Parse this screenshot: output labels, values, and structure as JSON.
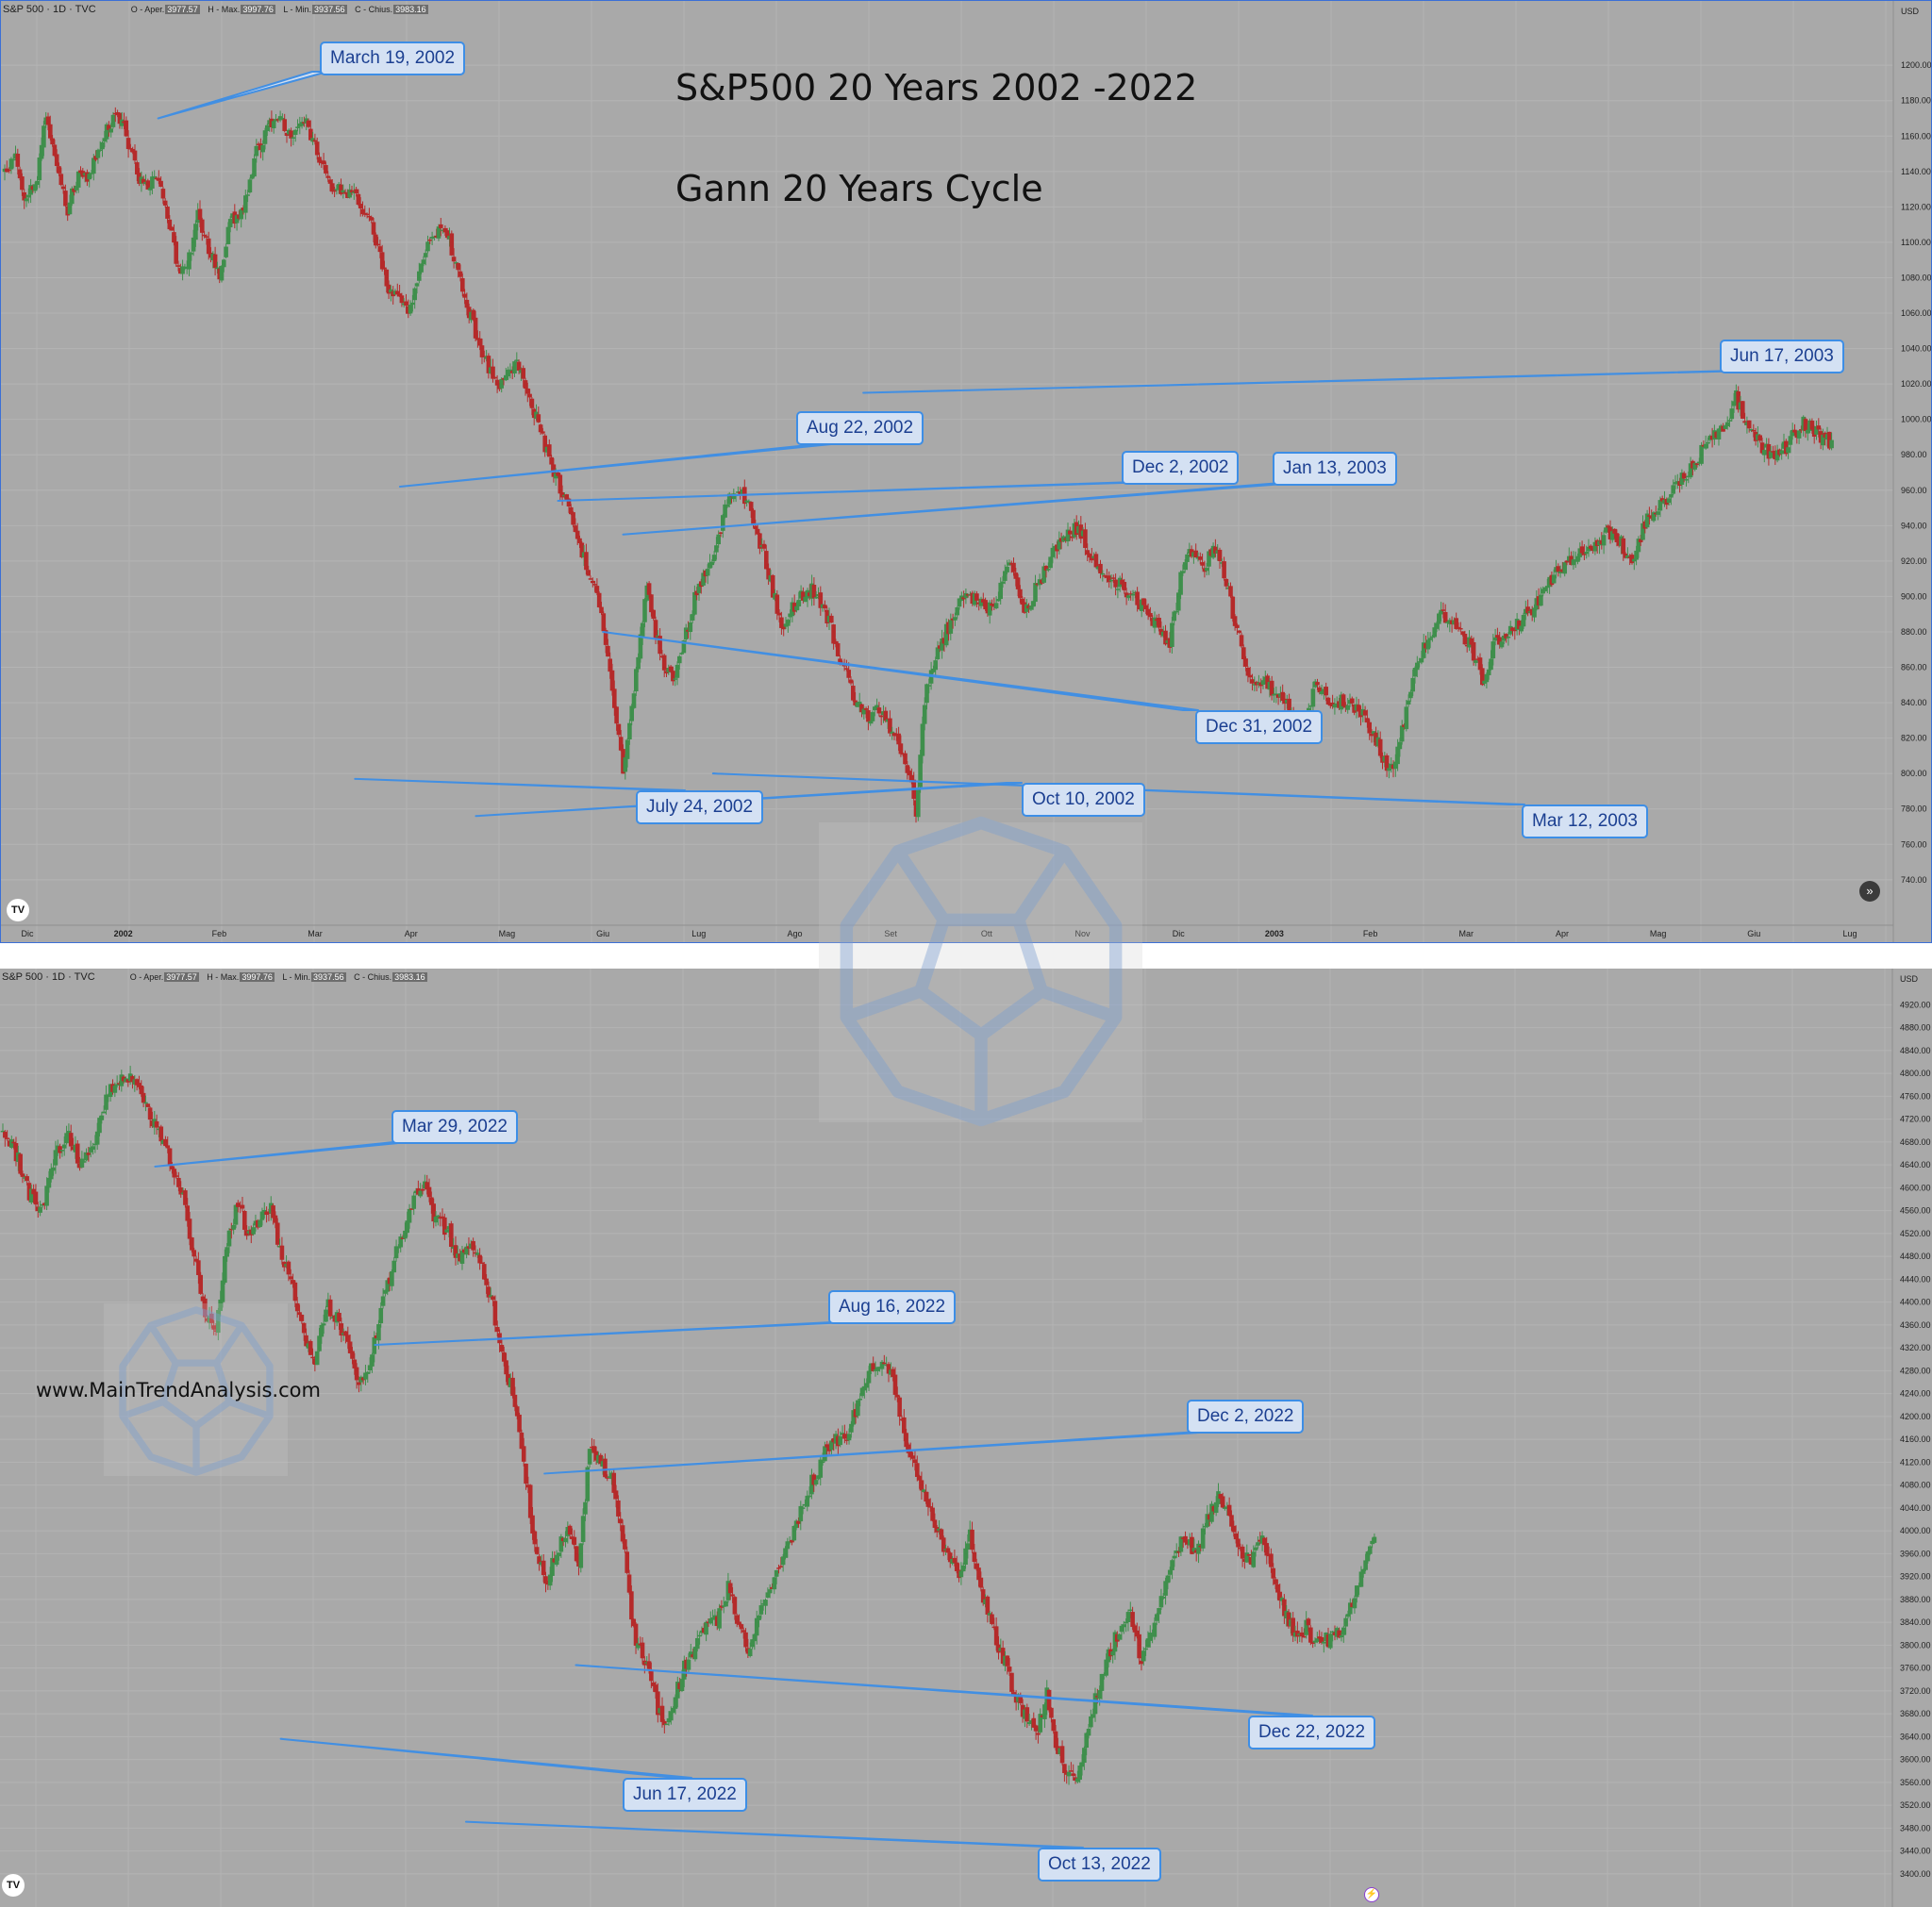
{
  "colors": {
    "up": "#3f8f4c",
    "down": "#b52a2a",
    "callout_bg": "#d4e1f3",
    "callout_border": "#3d8ee6",
    "background": "#a9a9a9"
  },
  "title": {
    "line1": "S&P500 20 Years 2002 -2022",
    "line2": "Gann 20 Years Cycle"
  },
  "website": "www.MainTrendAnalysis.com",
  "icons": {
    "logo": "tradingview-logo-icon",
    "watermark": "dodecahedron-watermark-icon",
    "scroll": "scroll-right-icon",
    "flash": "flash-icon"
  },
  "top": {
    "header": {
      "symbol": "S&P 500 · 1D · TVC",
      "o_label": "O - Aper.",
      "o": "3977.57",
      "h_label": "H - Max.",
      "h": "3997.76",
      "l_label": "L - Min.",
      "l": "3937.56",
      "c_label": "C - Chius.",
      "c": "3983.16"
    },
    "currency": "USD",
    "scroll_glyph": "»"
  },
  "bottom": {
    "header": {
      "symbol": "S&P 500 · 1D · TVC",
      "o_label": "O - Aper.",
      "o": "3977.57",
      "h_label": "H - Max.",
      "h": "3997.76",
      "l_label": "L - Min.",
      "l": "3937.56",
      "c_label": "C - Chius.",
      "c": "3983.16"
    },
    "currency": "USD",
    "flash_glyph": "⚡"
  },
  "chart_data": [
    {
      "type": "candlestick",
      "ylim": [
        725,
        1215
      ],
      "y_ticks": [
        "740.00",
        "760.00",
        "780.00",
        "800.00",
        "820.00",
        "840.00",
        "860.00",
        "880.00",
        "900.00",
        "920.00",
        "940.00",
        "960.00",
        "980.00",
        "1000.00",
        "1020.00",
        "1040.00",
        "1060.00",
        "1080.00",
        "1100.00",
        "1120.00",
        "1140.00",
        "1160.00",
        "1180.00",
        "1200.00"
      ],
      "x_tick_labels": [
        "Dic",
        "2002",
        "Feb",
        "Mar",
        "Apr",
        "Mag",
        "Giu",
        "Lug",
        "Ago",
        "Set",
        "Ott",
        "Nov",
        "Dic",
        "2003",
        "Feb",
        "Mar",
        "Apr",
        "Mag",
        "Giu",
        "Lug"
      ],
      "path": [
        [
          0,
          1140
        ],
        [
          5,
          1150
        ],
        [
          9,
          1126
        ],
        [
          15,
          1136
        ],
        [
          19,
          1172
        ],
        [
          23,
          1150
        ],
        [
          29,
          1118
        ],
        [
          33,
          1136
        ],
        [
          38,
          1136
        ],
        [
          46,
          1160
        ],
        [
          52,
          1174
        ],
        [
          58,
          1152
        ],
        [
          64,
          1130
        ],
        [
          70,
          1140
        ],
        [
          76,
          1110
        ],
        [
          80,
          1085
        ],
        [
          84,
          1084
        ],
        [
          89,
          1115
        ],
        [
          94,
          1095
        ],
        [
          99,
          1082
        ],
        [
          104,
          1112
        ],
        [
          110,
          1120
        ],
        [
          116,
          1150
        ],
        [
          121,
          1165
        ],
        [
          127,
          1168
        ],
        [
          133,
          1160
        ],
        [
          139,
          1166
        ],
        [
          146,
          1146
        ],
        [
          151,
          1132
        ],
        [
          157,
          1129
        ],
        [
          163,
          1124
        ],
        [
          169,
          1112
        ],
        [
          177,
          1074
        ],
        [
          186,
          1063
        ],
        [
          195,
          1096
        ],
        [
          201,
          1108
        ],
        [
          205,
          1100
        ],
        [
          212,
          1070
        ],
        [
          220,
          1035
        ],
        [
          228,
          1020
        ],
        [
          236,
          1030
        ],
        [
          242,
          1012
        ],
        [
          250,
          982
        ],
        [
          258,
          955
        ],
        [
          266,
          925
        ],
        [
          274,
          898
        ],
        [
          280,
          848
        ],
        [
          285,
          800
        ],
        [
          291,
          858
        ],
        [
          296,
          905
        ],
        [
          303,
          862
        ],
        [
          309,
          852
        ],
        [
          319,
          905
        ],
        [
          327,
          922
        ],
        [
          333,
          955
        ],
        [
          340,
          960
        ],
        [
          346,
          940
        ],
        [
          352,
          914
        ],
        [
          358,
          883
        ],
        [
          366,
          898
        ],
        [
          372,
          905
        ],
        [
          380,
          885
        ],
        [
          386,
          862
        ],
        [
          392,
          840
        ],
        [
          398,
          832
        ],
        [
          403,
          838
        ],
        [
          411,
          818
        ],
        [
          417,
          797
        ],
        [
          420,
          778
        ],
        [
          424,
          842
        ],
        [
          430,
          870
        ],
        [
          436,
          885
        ],
        [
          442,
          900
        ],
        [
          448,
          900
        ],
        [
          455,
          892
        ],
        [
          463,
          920
        ],
        [
          470,
          890
        ],
        [
          476,
          906
        ],
        [
          482,
          922
        ],
        [
          490,
          938
        ],
        [
          496,
          936
        ],
        [
          502,
          920
        ],
        [
          508,
          912
        ],
        [
          514,
          907
        ],
        [
          520,
          900
        ],
        [
          526,
          893
        ],
        [
          532,
          880
        ],
        [
          537,
          874
        ],
        [
          543,
          918
        ],
        [
          548,
          928
        ],
        [
          553,
          916
        ],
        [
          557,
          930
        ],
        [
          562,
          914
        ],
        [
          568,
          880
        ],
        [
          574,
          855
        ],
        [
          580,
          852
        ],
        [
          586,
          845
        ],
        [
          592,
          836
        ],
        [
          598,
          822
        ],
        [
          604,
          850
        ],
        [
          610,
          841
        ],
        [
          618,
          840
        ],
        [
          624,
          838
        ],
        [
          632,
          820
        ],
        [
          636,
          806
        ],
        [
          640,
          800
        ],
        [
          645,
          830
        ],
        [
          651,
          862
        ],
        [
          657,
          878
        ],
        [
          663,
          890
        ],
        [
          669,
          882
        ],
        [
          675,
          875
        ],
        [
          681,
          852
        ],
        [
          687,
          874
        ],
        [
          694,
          880
        ],
        [
          700,
          888
        ],
        [
          706,
          895
        ],
        [
          714,
          912
        ],
        [
          722,
          920
        ],
        [
          730,
          926
        ],
        [
          738,
          936
        ],
        [
          744,
          932
        ],
        [
          750,
          920
        ],
        [
          756,
          942
        ],
        [
          764,
          952
        ],
        [
          772,
          966
        ],
        [
          780,
          978
        ],
        [
          786,
          990
        ],
        [
          792,
          996
        ],
        [
          798,
          1012
        ],
        [
          804,
          992
        ],
        [
          810,
          985
        ],
        [
          816,
          979
        ],
        [
          822,
          986
        ],
        [
          828,
          998
        ],
        [
          834,
          994
        ],
        [
          840,
          988
        ],
        [
          842,
          984
        ]
      ],
      "callouts": [
        {
          "label": "March 19, 2002",
          "date": "2002-03-19",
          "value": 1170
        },
        {
          "label": "July 24, 2002",
          "date": "2002-07-24",
          "value": 797
        },
        {
          "label": "Aug 22, 2002",
          "date": "2002-08-22",
          "value": 962
        },
        {
          "label": "Oct 10, 2002",
          "date": "2002-10-10",
          "value": 776
        },
        {
          "label": "Dec 2, 2002",
          "date": "2002-12-02",
          "value": 954
        },
        {
          "label": "Dec 31, 2002",
          "date": "2002-12-31",
          "value": 880
        },
        {
          "label": "Jan 13, 2003",
          "date": "2003-01-13",
          "value": 935
        },
        {
          "label": "Mar 12, 2003",
          "date": "2003-03-12",
          "value": 800
        },
        {
          "label": "Jun 17, 2003",
          "date": "2003-06-17",
          "value": 1015
        }
      ]
    },
    {
      "type": "candlestick",
      "ylim": [
        3370,
        4970
      ],
      "y_ticks": [
        "3400.00",
        "3440.00",
        "3480.00",
        "3520.00",
        "3560.00",
        "3600.00",
        "3640.00",
        "3680.00",
        "3720.00",
        "3760.00",
        "3800.00",
        "3840.00",
        "3880.00",
        "3920.00",
        "3960.00",
        "4000.00",
        "4040.00",
        "4080.00",
        "4120.00",
        "4160.00",
        "4200.00",
        "4240.00",
        "4280.00",
        "4320.00",
        "4360.00",
        "4400.00",
        "4440.00",
        "4480.00",
        "4520.00",
        "4560.00",
        "4600.00",
        "4640.00",
        "4680.00",
        "4720.00",
        "4760.00",
        "4800.00",
        "4840.00",
        "4880.00",
        "4920.00"
      ],
      "path": [
        [
          0,
          4700
        ],
        [
          6,
          4660
        ],
        [
          12,
          4590
        ],
        [
          18,
          4560
        ],
        [
          24,
          4660
        ],
        [
          30,
          4690
        ],
        [
          36,
          4640
        ],
        [
          42,
          4690
        ],
        [
          48,
          4770
        ],
        [
          55,
          4790
        ],
        [
          61,
          4790
        ],
        [
          67,
          4720
        ],
        [
          72,
          4690
        ],
        [
          77,
          4640
        ],
        [
          82,
          4590
        ],
        [
          87,
          4480
        ],
        [
          92,
          4380
        ],
        [
          97,
          4360
        ],
        [
          102,
          4500
        ],
        [
          107,
          4570
        ],
        [
          112,
          4520
        ],
        [
          117,
          4540
        ],
        [
          122,
          4560
        ],
        [
          127,
          4480
        ],
        [
          132,
          4420
        ],
        [
          137,
          4340
        ],
        [
          142,
          4280
        ],
        [
          147,
          4400
        ],
        [
          152,
          4370
        ],
        [
          157,
          4330
        ],
        [
          162,
          4260
        ],
        [
          167,
          4300
        ],
        [
          172,
          4380
        ],
        [
          177,
          4460
        ],
        [
          182,
          4520
        ],
        [
          187,
          4580
        ],
        [
          192,
          4610
        ],
        [
          197,
          4540
        ],
        [
          202,
          4530
        ],
        [
          207,
          4480
        ],
        [
          212,
          4500
        ],
        [
          217,
          4470
        ],
        [
          222,
          4410
        ],
        [
          227,
          4310
        ],
        [
          232,
          4240
        ],
        [
          237,
          4120
        ],
        [
          242,
          3980
        ],
        [
          247,
          3910
        ],
        [
          252,
          3960
        ],
        [
          257,
          4000
        ],
        [
          262,
          3950
        ],
        [
          267,
          4140
        ],
        [
          272,
          4120
        ],
        [
          277,
          4090
        ],
        [
          282,
          3990
        ],
        [
          287,
          3820
        ],
        [
          290,
          3790
        ],
        [
          295,
          3740
        ],
        [
          300,
          3660
        ],
        [
          305,
          3700
        ],
        [
          310,
          3760
        ],
        [
          315,
          3800
        ],
        [
          320,
          3830
        ],
        [
          325,
          3840
        ],
        [
          330,
          3900
        ],
        [
          335,
          3830
        ],
        [
          340,
          3780
        ],
        [
          345,
          3870
        ],
        [
          350,
          3910
        ],
        [
          355,
          3960
        ],
        [
          360,
          4000
        ],
        [
          365,
          4060
        ],
        [
          370,
          4100
        ],
        [
          375,
          4150
        ],
        [
          380,
          4160
        ],
        [
          385,
          4170
        ],
        [
          390,
          4240
        ],
        [
          395,
          4280
        ],
        [
          400,
          4300
        ],
        [
          405,
          4270
        ],
        [
          410,
          4160
        ],
        [
          415,
          4110
        ],
        [
          420,
          4060
        ],
        [
          425,
          4000
        ],
        [
          430,
          3950
        ],
        [
          435,
          3920
        ],
        [
          440,
          3990
        ],
        [
          445,
          3900
        ],
        [
          450,
          3830
        ],
        [
          455,
          3780
        ],
        [
          460,
          3720
        ],
        [
          465,
          3680
        ],
        [
          470,
          3640
        ],
        [
          475,
          3720
        ],
        [
          478,
          3640
        ],
        [
          483,
          3590
        ],
        [
          488,
          3550
        ],
        [
          493,
          3640
        ],
        [
          498,
          3720
        ],
        [
          503,
          3780
        ],
        [
          508,
          3830
        ],
        [
          513,
          3860
        ],
        [
          518,
          3770
        ],
        [
          523,
          3820
        ],
        [
          528,
          3890
        ],
        [
          533,
          3960
        ],
        [
          538,
          3990
        ],
        [
          543,
          3960
        ],
        [
          548,
          4020
        ],
        [
          553,
          4060
        ],
        [
          558,
          4030
        ],
        [
          563,
          3960
        ],
        [
          568,
          3940
        ],
        [
          573,
          4000
        ],
        [
          578,
          3920
        ],
        [
          583,
          3860
        ],
        [
          588,
          3820
        ],
        [
          593,
          3830
        ],
        [
          598,
          3800
        ],
        [
          603,
          3810
        ],
        [
          608,
          3820
        ],
        [
          612,
          3850
        ],
        [
          616,
          3900
        ],
        [
          620,
          3960
        ],
        [
          624,
          3990
        ]
      ],
      "callouts": [
        {
          "label": "Mar 29, 2022",
          "date": "2022-03-29",
          "value": 4637
        },
        {
          "label": "Jun 17, 2022",
          "date": "2022-06-17",
          "value": 3636
        },
        {
          "label": "Aug 16, 2022",
          "date": "2022-08-16",
          "value": 4325
        },
        {
          "label": "Oct 13, 2022",
          "date": "2022-10-13",
          "value": 3491
        },
        {
          "label": "Dec 2, 2022",
          "date": "2022-12-02",
          "value": 4100
        },
        {
          "label": "Dec 22, 2022",
          "date": "2022-12-22",
          "value": 3765
        }
      ]
    }
  ]
}
